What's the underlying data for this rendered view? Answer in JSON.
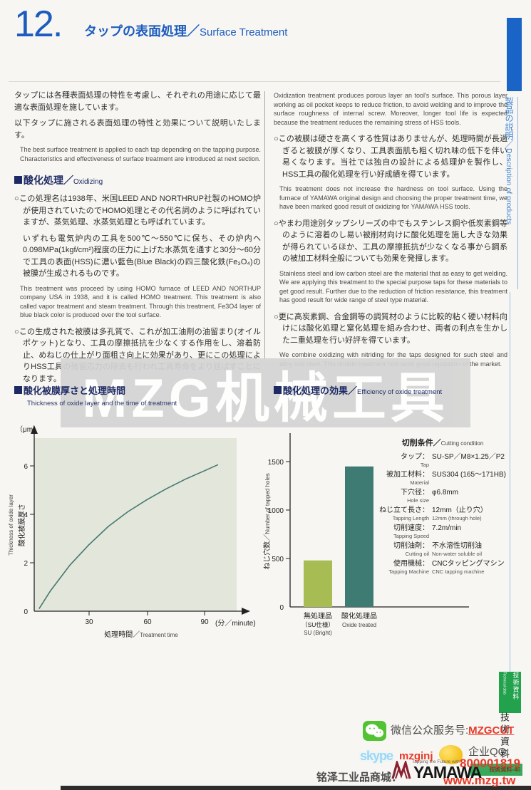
{
  "header": {
    "number": "12.",
    "title_jp": "タップの表面処理／",
    "title_en": "Surface Treatment"
  },
  "sidebar": {
    "section_label_jp": "製品の説明／",
    "section_label_en": "Description of products",
    "tech_tab_jp": "技術資料",
    "tech_tab_en": "Technical data",
    "tech_vertical": "技術資料",
    "page_badge": "技術資料-46"
  },
  "watermark": {
    "text": "MZG机械工具"
  },
  "left_column": {
    "intro_jp1": "タップには各種表面処理の特性を考慮し、それぞれの用途に応じて最適な表面処理を施しています。",
    "intro_jp2": "以下タップに施される表面処理の特性と効果について説明いたします。",
    "intro_en": "The best surface treatment is applied to each tap depending on the tapping purpose. Characteristics and effectiveness of surface treatment are introduced at next section.",
    "section_title_jp": "酸化処理／",
    "section_title_en": "Oxidizing",
    "para1_jp": "○この処理名は1938年、米国LEED AND NORTHRUP社製のHOMO炉が使用されていたのでHOMO処理とその代名詞のように呼ばれていますが、蒸気処理、水蒸気処理とも呼ばれています。",
    "para2_jp": "いずれも電気炉内の工具を500℃～550℃に保ち、その炉内へ0.098MPa(1kgf/cm²)程度の圧力に上げた水蒸気を通すと30分～60分で工具の表面(HSS)に濃い藍色(Blue Black)の四三酸化鉄(Fe₃O₄)の被膜が生成されるものです。",
    "para2_en": "This treatment was proceed by using HOMO furnace of LEED AND NORTHUP company USA in 1938, and it is called HOMO treatment. This treatment is also called vapor treatment and steam treatment. Through this treatment, Fe3O4 layer of blue black color is produced over the tool surface.",
    "para3_jp": "○この生成された被膜は多孔質で、これが加工油剤の油留まり(オイルポケット)となり、工具の摩擦抵抗を少なくする作用をし、溶着防止、めねじの仕上がり面粗さ向上に効果があり、更にこの処理によりHSS工具の残留応力の除去も行われ工具寿命をより延ばすことになります。"
  },
  "right_column": {
    "para1_en": "Oxidization treatment produces porous layer an tool's surface. This porous layer working as oil pocket keeps to reduce friction, to avoid welding and to improve the surface roughness of internal screw. Moreover, longer tool life is expected because the treatment reduces the remaining stress of HSS tools.",
    "para2_jp": "○この被膜は硬さを高くする性質はありませんが、処理時間が長過ぎると被膜が厚くなり、工具表面肌も粗く切れ味の低下を伴い易くなります。当社では独自の設計による処理炉を製作し、HSS工具の酸化処理を行い好成績を得ています。",
    "para2_en": "This treatment does not increase the hardness on tool surface. Using the furnace of YAMAWA original design and choosing the proper treatment time, we have been marked good result of oxidizing for YAMAWA HSS tools.",
    "para3_jp": "○やまわ用途別タップシリーズの中でもステンレス鋼や低炭素鋼等のように溶着のし易い被削材向けに酸化処理を施し大きな効果が得られているほか、工具の摩擦抵抗が少なくなる事から鋼系の被加工材料全般についても効果を発揮します。",
    "para3_en": "Stainless steel and low carbon steel are the material that as easy to get welding. We are applying this treatment to the special purpose taps for these materials to get good result. Further due to the reduction of friction resistance, this treatment has good result for wide range of steel type material.",
    "para4_jp": "○更に高炭素鋼、合金鋼等の調質材のように比較的粘く硬い材料向けには酸化処理と窒化処理を組み合わせ、両者の利点を生かした二重処理を行い好評を得ています。",
    "para4_en": "We combine oxidizing with nitriding for the taps designed for such steel and alloy tool steel. This double treatment how work good reputation of the market."
  },
  "chart_sections": {
    "left_title_jp": "酸化被膜厚さと処理時間",
    "left_title_en": "Thickness of oxide layer and the time of treatment",
    "right_title_jp": "酸化処理の効果／",
    "right_title_en": "Efficiency of oxide treatment"
  },
  "chart_data": [
    {
      "type": "line",
      "title": "酸化被膜厚さと処理時間／Thickness of oxide layer and the time of treatment",
      "x": [
        4,
        10,
        20,
        30,
        40,
        50,
        60,
        70,
        80,
        90,
        97
      ],
      "y": [
        0.1,
        0.85,
        1.9,
        2.75,
        3.5,
        4.1,
        4.6,
        5.05,
        5.45,
        5.8,
        6.05
      ],
      "xticks": [
        30,
        60,
        90
      ],
      "yticks": [
        0,
        2,
        4,
        6
      ],
      "xlim": [
        0,
        100
      ],
      "ylim": [
        0,
        7
      ],
      "xlabel_jp": "処理時間／",
      "xlabel_en": "Treatment time",
      "ylabel_jp": "酸化被膜厚さ",
      "ylabel_en": "Thickness of oxide layer",
      "y_unit": "（μm）",
      "x_unit": "(分／minute)",
      "line_color": "#46786e",
      "plot_bg": "#e3e6db",
      "grid": false,
      "legend": "none"
    },
    {
      "type": "bar",
      "title": "酸化処理の効果／Efficiency of oxide treatment",
      "values": [
        480,
        1450
      ],
      "bar_colors": [
        "#a7bd54",
        "#3d7b73"
      ],
      "yticks": [
        0,
        500,
        1000,
        1500
      ],
      "ylim": [
        0,
        1700
      ],
      "ylabel_jp": "ねじ穴数／",
      "ylabel_en": "Number of tapped holes",
      "categories": [
        {
          "jp1": "無処理品",
          "jp2": "（SU仕様）",
          "en": "SU (Bright)"
        },
        {
          "jp1": "酸化処理品",
          "jp2": "",
          "en": "Oxide treated"
        }
      ],
      "grid": false,
      "legend": "none"
    }
  ],
  "cutting": {
    "title_jp": "切削条件／",
    "title_en": "Cutting condition",
    "rows": [
      {
        "label_jp": "タップ：",
        "label_en": "Tap",
        "value_jp": "SU-SP／M8×1.25／P2",
        "value_en": ""
      },
      {
        "label_jp": "被加工材料：",
        "label_en": "Material",
        "value_jp": "SUS304 (165～171HB)",
        "value_en": ""
      },
      {
        "label_jp": "下穴径：",
        "label_en": "Hole size",
        "value_jp": "φ6.8mm",
        "value_en": ""
      },
      {
        "label_jp": "ねじ立て長さ：",
        "label_en": "Tapping Length",
        "value_jp": "12mm（止り穴）",
        "value_en": "12mm (through hole)"
      },
      {
        "label_jp": "切削速度：",
        "label_en": "Tapping Speed",
        "value_jp": "7.2m/min",
        "value_en": ""
      },
      {
        "label_jp": "切削油剤：",
        "label_en": "Cutting oil",
        "value_jp": "不水溶性切削油",
        "value_en": "Non-water soluble oil"
      },
      {
        "label_jp": "使用機械：",
        "label_en": "Tapping Machine",
        "value_jp": "CNCタッピングマシン",
        "value_en": "CNC tapping machine"
      }
    ]
  },
  "footer": {
    "wechat_label": "微信公众服务号:",
    "wechat_id": "MZGCUT",
    "qq_label": "企业QQ:",
    "qq_number": "800001819",
    "skype_word": "skype",
    "skype_id": "mzginj",
    "yamawa_tagline": "Tapping the Future with",
    "yamawa_name": "YAMAWA",
    "shop_label": "铭泽工业品商城：",
    "shop_url": "www.mzg.tw"
  }
}
